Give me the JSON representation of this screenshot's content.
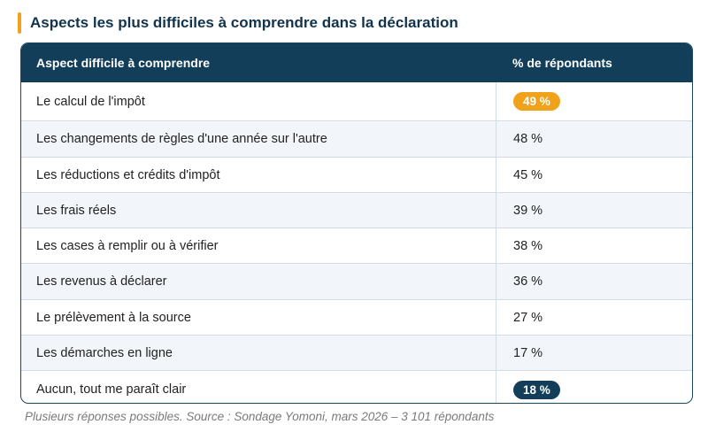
{
  "title": "Aspects les plus difficiles à comprendre dans la déclaration",
  "colors": {
    "accent": "#f0a21b",
    "header": "#123e5a",
    "alt_row": "#f2f6fa",
    "highlight_orange": "#f0a21b",
    "highlight_navy": "#123e5a"
  },
  "chart_data": {
    "type": "table",
    "title": "Aspects les plus difficiles à comprendre dans la déclaration",
    "columns": [
      "Aspect difficile à comprendre",
      "% de répondants"
    ],
    "rows": [
      {
        "label": "Le calcul de l'impôt",
        "value": 49,
        "display": "49 %",
        "highlight": "orange"
      },
      {
        "label": "Les changements de règles d'une année sur l'autre",
        "value": 48,
        "display": "48 %"
      },
      {
        "label": "Les réductions et crédits d'impôt",
        "value": 45,
        "display": "45 %"
      },
      {
        "label": "Les frais réels",
        "value": 39,
        "display": "39 %"
      },
      {
        "label": "Les cases à remplir ou à vérifier",
        "value": 38,
        "display": "38 %"
      },
      {
        "label": "Les revenus à déclarer",
        "value": 36,
        "display": "36 %"
      },
      {
        "label": "Le prélèvement à la source",
        "value": 27,
        "display": "27 %"
      },
      {
        "label": "Les démarches en ligne",
        "value": 17,
        "display": "17 %"
      },
      {
        "label": "Aucun, tout me paraît clair",
        "value": 18,
        "display": "18 %",
        "highlight": "navy"
      }
    ]
  },
  "note": "Plusieurs réponses possibles. Source : Sondage Yomoni, mars 2026 – 3 101 répondants"
}
